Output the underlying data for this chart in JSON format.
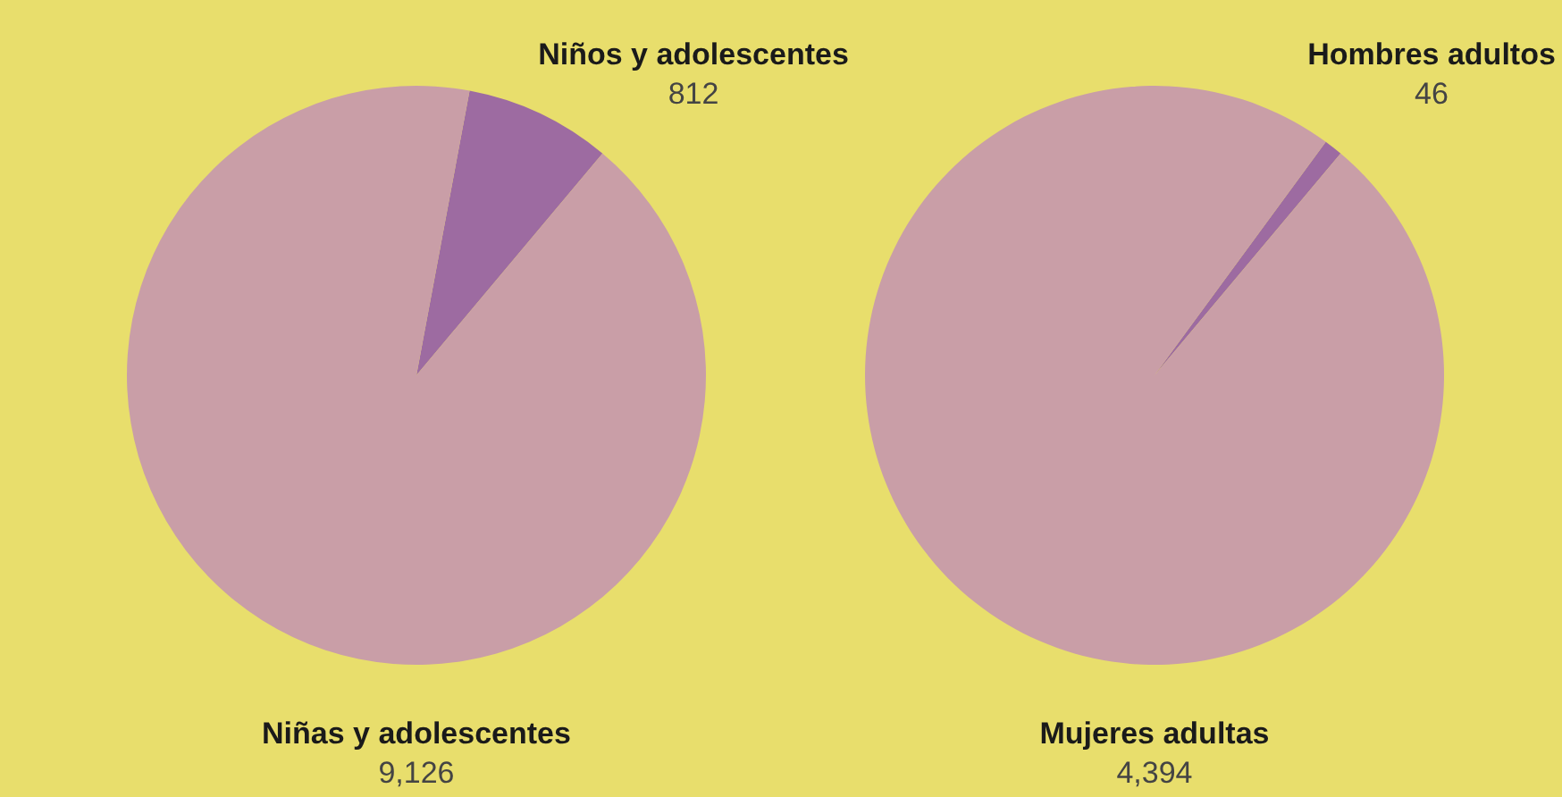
{
  "chart_data": [
    {
      "type": "pie",
      "categories": [
        "Niños y adolescentes",
        "Niñas y adolescentes"
      ],
      "values": [
        812,
        9126
      ],
      "colors": [
        "#9d6ba1",
        "#c99ea7"
      ],
      "value_labels": [
        "812",
        "9,126"
      ]
    },
    {
      "type": "pie",
      "categories": [
        "Hombres adultos",
        "Mujeres adultas"
      ],
      "values": [
        46,
        4394
      ],
      "colors": [
        "#9d6ba1",
        "#c99ea7"
      ],
      "value_labels": [
        "46",
        "4,394"
      ]
    }
  ]
}
